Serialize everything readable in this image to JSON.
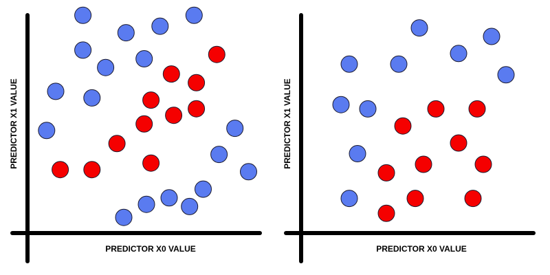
{
  "colors": {
    "class_a": "#5A7BF0",
    "class_b": "#F50000",
    "axis": "#000000"
  },
  "chart_data": [
    {
      "type": "scatter",
      "title": "",
      "xlabel": "PREDICTOR X0 VALUE",
      "ylabel": "PREDICTOR X1 VALUE",
      "xlim": [
        0,
        10
      ],
      "ylim": [
        0,
        10
      ],
      "grid": false,
      "series": [
        {
          "color": "#5A7BF0",
          "x": [
            2.2,
            2.2,
            4.1,
            5.6,
            7.1,
            3.2,
            4.9,
            1.0,
            2.6,
            0.6,
            4.0,
            5.0,
            6.0,
            6.9,
            7.5,
            8.2,
            8.9,
            9.5
          ],
          "y": [
            9.8,
            8.2,
            9.0,
            9.3,
            9.8,
            7.4,
            7.8,
            6.3,
            6.0,
            4.5,
            0.5,
            1.1,
            1.4,
            1.0,
            1.8,
            3.4,
            4.6,
            2.6
          ]
        },
        {
          "color": "#F50000",
          "x": [
            8.1,
            6.1,
            7.2,
            5.2,
            6.2,
            7.2,
            4.9,
            3.7,
            5.2,
            1.2,
            2.6
          ],
          "y": [
            8.0,
            7.1,
            6.7,
            5.9,
            5.2,
            5.5,
            4.8,
            3.9,
            3.0,
            2.7,
            2.7
          ]
        }
      ]
    },
    {
      "type": "scatter",
      "title": "",
      "xlabel": "PREDICTOR X0 VALUE",
      "ylabel": "PREDICTOR X1 VALUE",
      "xlim": [
        0,
        10
      ],
      "ylim": [
        0,
        10
      ],
      "grid": false,
      "series": [
        {
          "color": "#5A7BF0",
          "x": [
            5.0,
            8.5,
            6.9,
            9.2,
            1.6,
            4.0,
            1.2,
            2.5,
            2.0,
            1.6
          ],
          "y": [
            9.4,
            9.0,
            8.2,
            7.2,
            7.7,
            7.7,
            5.8,
            5.6,
            3.5,
            1.4
          ]
        },
        {
          "color": "#F50000",
          "x": [
            5.8,
            7.8,
            4.2,
            6.9,
            5.2,
            8.1,
            3.4,
            4.8,
            7.6,
            3.4
          ],
          "y": [
            5.6,
            5.6,
            4.8,
            4.0,
            3.0,
            3.0,
            2.6,
            1.4,
            1.4,
            0.7
          ]
        }
      ]
    }
  ]
}
